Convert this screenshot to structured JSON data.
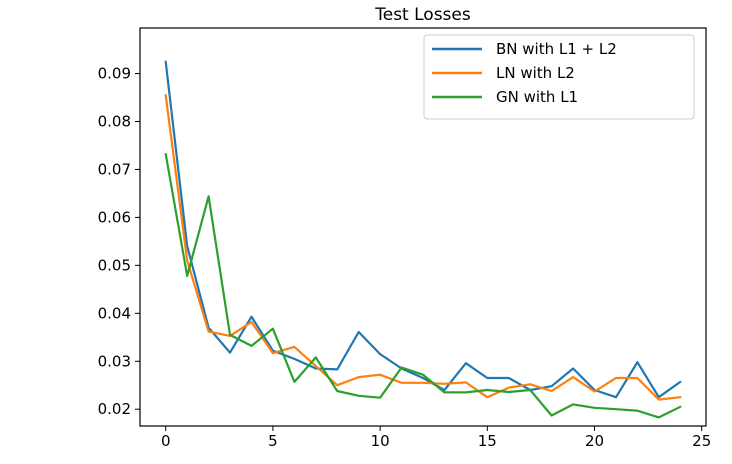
{
  "chart_data": {
    "type": "line",
    "title": "Test Losses",
    "xlabel": "",
    "ylabel": "",
    "xlim": [
      -1.2,
      25.2
    ],
    "ylim": [
      0.0165,
      0.0995
    ],
    "xticks": [
      0,
      5,
      10,
      15,
      20,
      25
    ],
    "xtick_labels": [
      "0",
      "5",
      "10",
      "15",
      "20",
      "25"
    ],
    "yticks": [
      0.02,
      0.03,
      0.04,
      0.05,
      0.06,
      0.07,
      0.08,
      0.09
    ],
    "ytick_labels": [
      "0.02",
      "0.03",
      "0.04",
      "0.05",
      "0.06",
      "0.07",
      "0.08",
      "0.09"
    ],
    "grid": false,
    "legend_position": "top-right",
    "x": [
      0,
      1,
      2,
      3,
      4,
      5,
      6,
      7,
      8,
      9,
      10,
      11,
      12,
      13,
      14,
      15,
      16,
      17,
      18,
      19,
      20,
      21,
      22,
      23,
      24
    ],
    "series": [
      {
        "name": "BN with L1 + L2",
        "color": "#1f77b4",
        "values": [
          0.0925,
          0.054,
          0.037,
          0.0318,
          0.0393,
          0.0322,
          0.0305,
          0.0285,
          0.0283,
          0.0361,
          0.0315,
          0.0285,
          0.0265,
          0.024,
          0.0296,
          0.0265,
          0.0265,
          0.024,
          0.0248,
          0.0285,
          0.024,
          0.0225,
          0.0298,
          0.0225,
          0.0257
        ]
      },
      {
        "name": "LN with L2",
        "color": "#ff7f0e",
        "values": [
          0.0855,
          0.051,
          0.0362,
          0.0353,
          0.0382,
          0.0317,
          0.033,
          0.029,
          0.025,
          0.0267,
          0.0272,
          0.0255,
          0.0255,
          0.0253,
          0.0256,
          0.0225,
          0.0245,
          0.0252,
          0.0238,
          0.0267,
          0.0237,
          0.0265,
          0.0265,
          0.022,
          0.0225
        ]
      },
      {
        "name": "GN with L1",
        "color": "#2ca02c",
        "values": [
          0.0732,
          0.0478,
          0.0644,
          0.0355,
          0.0332,
          0.0368,
          0.0257,
          0.0308,
          0.0238,
          0.0228,
          0.0224,
          0.0287,
          0.0272,
          0.0235,
          0.0235,
          0.024,
          0.0236,
          0.024,
          0.0187,
          0.021,
          0.0203,
          0.02,
          0.0197,
          0.0183,
          0.0205
        ]
      }
    ]
  }
}
